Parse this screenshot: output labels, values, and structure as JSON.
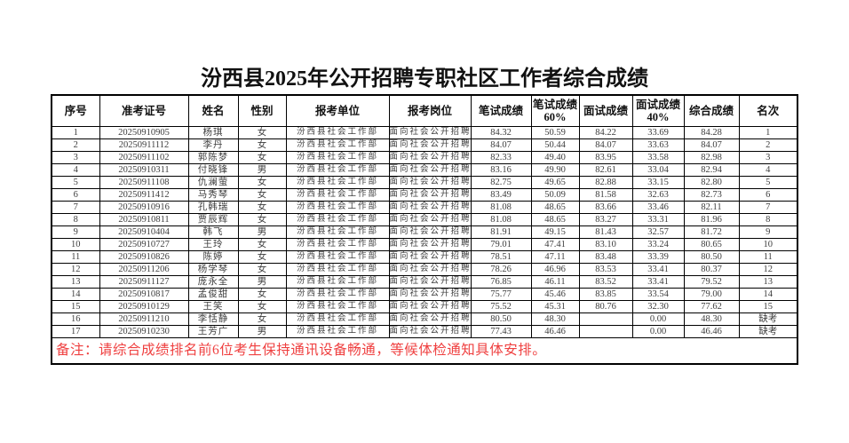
{
  "page": {
    "title": "汾西县2025年公开招聘专职社区工作者综合成绩"
  },
  "colors": {
    "note_red": "#ef4040",
    "grid_line": "#000000",
    "body_text": "#3d3d3d"
  },
  "table": {
    "headers": [
      "序号",
      "准考证号",
      "姓名",
      "性别",
      "报考单位",
      "报考岗位",
      "笔试成绩",
      "笔试成绩60%",
      "面试成绩",
      "面试成绩40%",
      "综合成绩",
      "名次"
    ],
    "column_keys": [
      "seq",
      "ticket-number",
      "name",
      "gender",
      "unit",
      "position",
      "written-score",
      "written-score-60",
      "interview-score",
      "interview-score-40",
      "comprehensive-score",
      "rank"
    ],
    "rows": [
      [
        "1",
        "20250910905",
        "杨琪",
        "女",
        "汾西县社会工作部",
        "面向社会公开招聘",
        "84.32",
        "50.59",
        "84.22",
        "33.69",
        "84.28",
        "1"
      ],
      [
        "2",
        "20250911112",
        "李丹",
        "女",
        "汾西县社会工作部",
        "面向社会公开招聘",
        "84.07",
        "50.44",
        "84.07",
        "33.63",
        "84.07",
        "2"
      ],
      [
        "3",
        "20250911102",
        "郭陈梦",
        "女",
        "汾西县社会工作部",
        "面向社会公开招聘",
        "82.33",
        "49.40",
        "83.95",
        "33.58",
        "82.98",
        "3"
      ],
      [
        "4",
        "20250910311",
        "付晓锋",
        "男",
        "汾西县社会工作部",
        "面向社会公开招聘",
        "83.16",
        "49.90",
        "82.61",
        "33.04",
        "82.94",
        "4"
      ],
      [
        "5",
        "20250911108",
        "仇澜萤",
        "女",
        "汾西县社会工作部",
        "面向社会公开招聘",
        "82.75",
        "49.65",
        "82.88",
        "33.15",
        "82.80",
        "5"
      ],
      [
        "6",
        "20250911412",
        "马秀琴",
        "女",
        "汾西县社会工作部",
        "面向社会公开招聘",
        "83.49",
        "50.09",
        "81.58",
        "32.63",
        "82.73",
        "6"
      ],
      [
        "7",
        "20250910916",
        "孔韩瑞",
        "女",
        "汾西县社会工作部",
        "面向社会公开招聘",
        "81.08",
        "48.65",
        "83.66",
        "33.46",
        "82.11",
        "7"
      ],
      [
        "8",
        "20250910811",
        "贾辰辉",
        "女",
        "汾西县社会工作部",
        "面向社会公开招聘",
        "81.08",
        "48.65",
        "83.27",
        "33.31",
        "81.96",
        "8"
      ],
      [
        "9",
        "20250910404",
        "韩飞",
        "男",
        "汾西县社会工作部",
        "面向社会公开招聘",
        "81.91",
        "49.15",
        "81.43",
        "32.57",
        "81.72",
        "9"
      ],
      [
        "10",
        "20250910727",
        "王玲",
        "女",
        "汾西县社会工作部",
        "面向社会公开招聘",
        "79.01",
        "47.41",
        "83.10",
        "33.24",
        "80.65",
        "10"
      ],
      [
        "11",
        "20250910826",
        "陈婷",
        "女",
        "汾西县社会工作部",
        "面向社会公开招聘",
        "78.51",
        "47.11",
        "83.48",
        "33.39",
        "80.50",
        "11"
      ],
      [
        "12",
        "20250911206",
        "杨学琴",
        "女",
        "汾西县社会工作部",
        "面向社会公开招聘",
        "78.26",
        "46.96",
        "83.53",
        "33.41",
        "80.37",
        "12"
      ],
      [
        "13",
        "20250911127",
        "庞永全",
        "男",
        "汾西县社会工作部",
        "面向社会公开招聘",
        "76.85",
        "46.11",
        "83.52",
        "33.41",
        "79.52",
        "13"
      ],
      [
        "14",
        "20250910817",
        "孟俊甜",
        "女",
        "汾西县社会工作部",
        "面向社会公开招聘",
        "75.77",
        "45.46",
        "83.85",
        "33.54",
        "79.00",
        "14"
      ],
      [
        "15",
        "20250910129",
        "王笑",
        "女",
        "汾西县社会工作部",
        "面向社会公开招聘",
        "75.52",
        "45.31",
        "80.76",
        "32.30",
        "77.62",
        "15"
      ],
      [
        "16",
        "20250911210",
        "李恬静",
        "女",
        "汾西县社会工作部",
        "面向社会公开招聘",
        "80.50",
        "48.30",
        "",
        "0.00",
        "48.30",
        "缺考"
      ],
      [
        "17",
        "20250910230",
        "王芳广",
        "男",
        "汾西县社会工作部",
        "面向社会公开招聘",
        "77.43",
        "46.46",
        "",
        "0.00",
        "46.46",
        "缺考"
      ]
    ]
  },
  "note": "备注：请综合成绩排名前6位考生保持通讯设备畅通，等候体检通知具体安排。"
}
